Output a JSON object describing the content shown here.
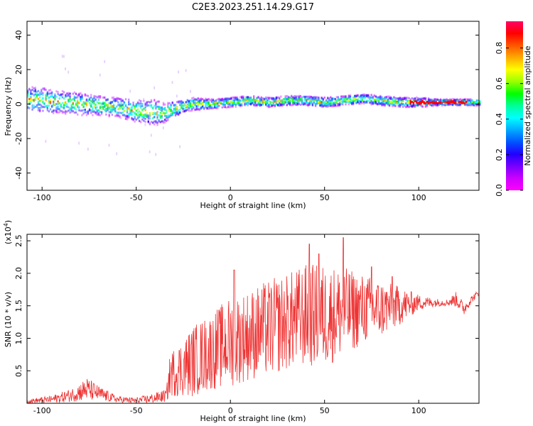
{
  "title": "C2E3.2023.251.14.29.G17",
  "chart_data": [
    {
      "type": "heatmap",
      "xlabel": "Height of straight line (km)",
      "ylabel": "Frequency (Hz)",
      "xlim": [
        -108,
        132
      ],
      "ylim": [
        -50,
        48
      ],
      "xticks": [
        -100,
        -50,
        0,
        50,
        100
      ],
      "yticks": [
        -40,
        -20,
        0,
        20,
        40
      ],
      "colorbar": {
        "label": "Normalized spectral amplitude",
        "range": [
          0,
          0.95
        ],
        "ticks": [
          "0.0",
          "0.2",
          "0.4",
          "0.6",
          "0.8"
        ],
        "colors": [
          "#ff00ff",
          "#cc00ff",
          "#7700ff",
          "#2200ff",
          "#0055ff",
          "#00aaff",
          "#00ffff",
          "#00ff99",
          "#00ff00",
          "#99ff00",
          "#ffff00",
          "#ffaa00",
          "#ff5500",
          "#ff0000",
          "#ff0066"
        ]
      },
      "ridge": {
        "x": [
          -108,
          -100,
          -90,
          -80,
          -70,
          -60,
          -50,
          -40,
          -35,
          -30,
          -25,
          -20,
          -10,
          0,
          10,
          20,
          30,
          40,
          50,
          60,
          70,
          80,
          90,
          100,
          110,
          120,
          132
        ],
        "y": [
          3,
          2,
          1,
          0,
          -1,
          -2,
          -4,
          -5,
          -5,
          -3,
          -1,
          0,
          0,
          1,
          2,
          1,
          2,
          2,
          1,
          2,
          3,
          2,
          1,
          1,
          1,
          1,
          1
        ],
        "spread": [
          8,
          8,
          7,
          7,
          6,
          6,
          7,
          8,
          6,
          5,
          4,
          4,
          3,
          3,
          3,
          3,
          3,
          3,
          3,
          3,
          3,
          3,
          3,
          3,
          2,
          2,
          2
        ]
      }
    },
    {
      "type": "line",
      "xlabel": "Height of straight line (km)",
      "ylabel": "SNR (10 * v/v)",
      "scale_label": "(x10",
      "scale_exp": "4",
      "scale_close": ")",
      "xlim": [
        -108,
        132
      ],
      "ylim": [
        0,
        2.6
      ],
      "xticks": [
        -100,
        -50,
        0,
        50,
        100
      ],
      "yticks": [
        0.5,
        1.0,
        1.5,
        2.0,
        2.5
      ],
      "ytick_labels": [
        "0.5",
        "1.0",
        "1.5",
        "2.0",
        "2.5"
      ],
      "color": "#ee3333",
      "envelope": {
        "x": [
          -108,
          -95,
          -85,
          -76,
          -70,
          -60,
          -50,
          -40,
          -34,
          -32,
          -25,
          -20,
          -10,
          0,
          10,
          20,
          30,
          40,
          50,
          60,
          70,
          80,
          90,
          100,
          110,
          115,
          120,
          124,
          128,
          132
        ],
        "mean": [
          0.03,
          0.06,
          0.12,
          0.22,
          0.15,
          0.06,
          0.04,
          0.08,
          0.12,
          0.45,
          0.55,
          0.65,
          0.8,
          0.95,
          1.05,
          1.15,
          1.25,
          1.35,
          1.35,
          1.4,
          1.45,
          1.45,
          1.5,
          1.55,
          1.55,
          1.55,
          1.6,
          1.45,
          1.6,
          1.7
        ],
        "amp": [
          0.03,
          0.06,
          0.1,
          0.18,
          0.12,
          0.05,
          0.05,
          0.08,
          0.1,
          0.35,
          0.45,
          0.55,
          0.6,
          0.7,
          0.7,
          0.75,
          0.75,
          0.8,
          0.8,
          0.7,
          0.55,
          0.45,
          0.3,
          0.12,
          0.06,
          0.05,
          0.12,
          0.1,
          0.06,
          0.05
        ]
      },
      "peaks": [
        [
          2,
          2.05
        ],
        [
          42,
          2.45
        ],
        [
          47,
          2.3
        ],
        [
          60,
          2.55
        ],
        [
          75,
          2.1
        ],
        [
          86,
          1.95
        ]
      ]
    }
  ]
}
